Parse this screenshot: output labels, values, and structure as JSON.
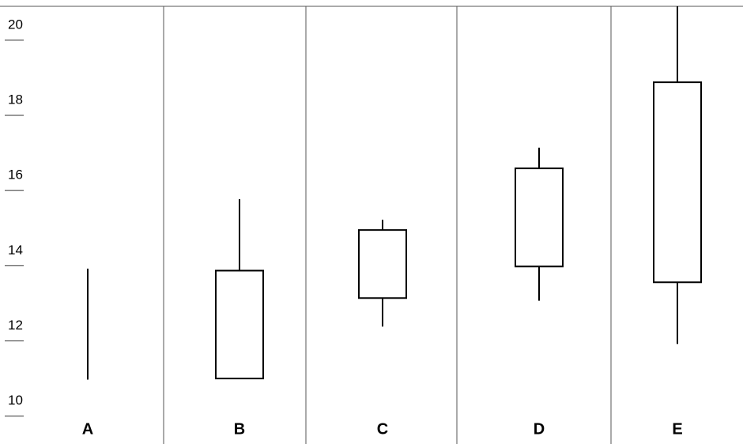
{
  "chart_data": {
    "type": "candlestick",
    "categories": [
      "A",
      "B",
      "C",
      "D",
      "E"
    ],
    "open": [
      null,
      11.0,
      13.14,
      13.98,
      13.56
    ],
    "close": [
      null,
      13.87,
      14.95,
      16.59,
      18.88
    ],
    "high": [
      13.92,
      15.77,
      15.22,
      17.14,
      20.9
    ],
    "low": [
      10.97,
      11.0,
      12.38,
      13.07,
      11.92
    ],
    "color": "#ffffff",
    "ylim": [
      9.3,
      20.9
    ],
    "yticks": [
      10,
      12,
      14,
      16,
      18,
      20
    ]
  }
}
